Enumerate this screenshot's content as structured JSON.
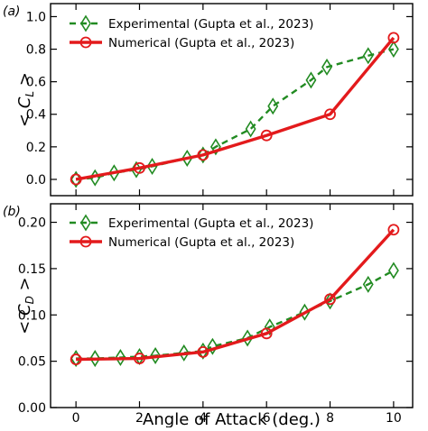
{
  "colors": {
    "experimental": "#228b22",
    "numerical": "#e31a1c",
    "axis": "#000000"
  },
  "chart_data": [
    {
      "type": "line",
      "panel_label": "(a)",
      "ylabel": "< C_L >",
      "ylabel_main": "C",
      "ylabel_sub": "L",
      "xlabel": "",
      "xlim": [
        -0.8,
        10.6
      ],
      "ylim": [
        -0.1,
        1.08
      ],
      "yticks": [
        0.0,
        0.2,
        0.4,
        0.6,
        0.8,
        1.0
      ],
      "ytick_labels": [
        "0.0",
        "0.2",
        "0.4",
        "0.6",
        "0.8",
        "1.0"
      ],
      "xticks": [
        0,
        2,
        4,
        6,
        8,
        10
      ],
      "show_xtick_labels": false,
      "legend_position": "top-left",
      "series": [
        {
          "name": "Experimental (Gupta et al., 2023)",
          "style": "dashed-diamond",
          "x": [
            0,
            0.6,
            1.2,
            1.9,
            2.4,
            3.5,
            4.0,
            4.4,
            5.5,
            6.2,
            7.4,
            7.9,
            9.2,
            10.0
          ],
          "y": [
            0.0,
            0.01,
            0.04,
            0.06,
            0.08,
            0.13,
            0.15,
            0.2,
            0.31,
            0.45,
            0.61,
            0.69,
            0.76,
            0.8
          ]
        },
        {
          "name": "Numerical (Gupta et al., 2023)",
          "style": "solid-circle",
          "x": [
            0,
            2,
            4,
            6,
            8,
            10
          ],
          "y": [
            0.0,
            0.07,
            0.15,
            0.27,
            0.4,
            0.87
          ]
        }
      ]
    },
    {
      "type": "line",
      "panel_label": "(b)",
      "ylabel": "< C_D >",
      "ylabel_main": "C",
      "ylabel_sub": "D",
      "xlabel": "Angle of Attack (deg.)",
      "xlim": [
        -0.8,
        10.6
      ],
      "ylim": [
        0.0,
        0.22
      ],
      "yticks": [
        0.0,
        0.05,
        0.1,
        0.15,
        0.2
      ],
      "ytick_labels": [
        "0.00",
        "0.05",
        "0.10",
        "0.15",
        "0.20"
      ],
      "xticks": [
        0,
        2,
        4,
        6,
        8,
        10
      ],
      "xtick_labels": [
        "0",
        "2",
        "4",
        "6",
        "8",
        "10"
      ],
      "show_xtick_labels": true,
      "legend_position": "top-left",
      "series": [
        {
          "name": "Experimental (Gupta et al., 2023)",
          "style": "dashed-diamond",
          "x": [
            0,
            0.6,
            1.4,
            2.0,
            2.5,
            3.4,
            4.0,
            4.3,
            5.4,
            6.1,
            7.2,
            8.0,
            9.2,
            10.0
          ],
          "y": [
            0.053,
            0.053,
            0.054,
            0.055,
            0.056,
            0.059,
            0.061,
            0.066,
            0.075,
            0.087,
            0.103,
            0.115,
            0.133,
            0.148
          ]
        },
        {
          "name": "Numerical (Gupta et al., 2023)",
          "style": "solid-circle",
          "x": [
            0,
            2,
            4,
            6,
            8,
            10
          ],
          "y": [
            0.052,
            0.053,
            0.06,
            0.08,
            0.117,
            0.192
          ]
        }
      ]
    }
  ]
}
